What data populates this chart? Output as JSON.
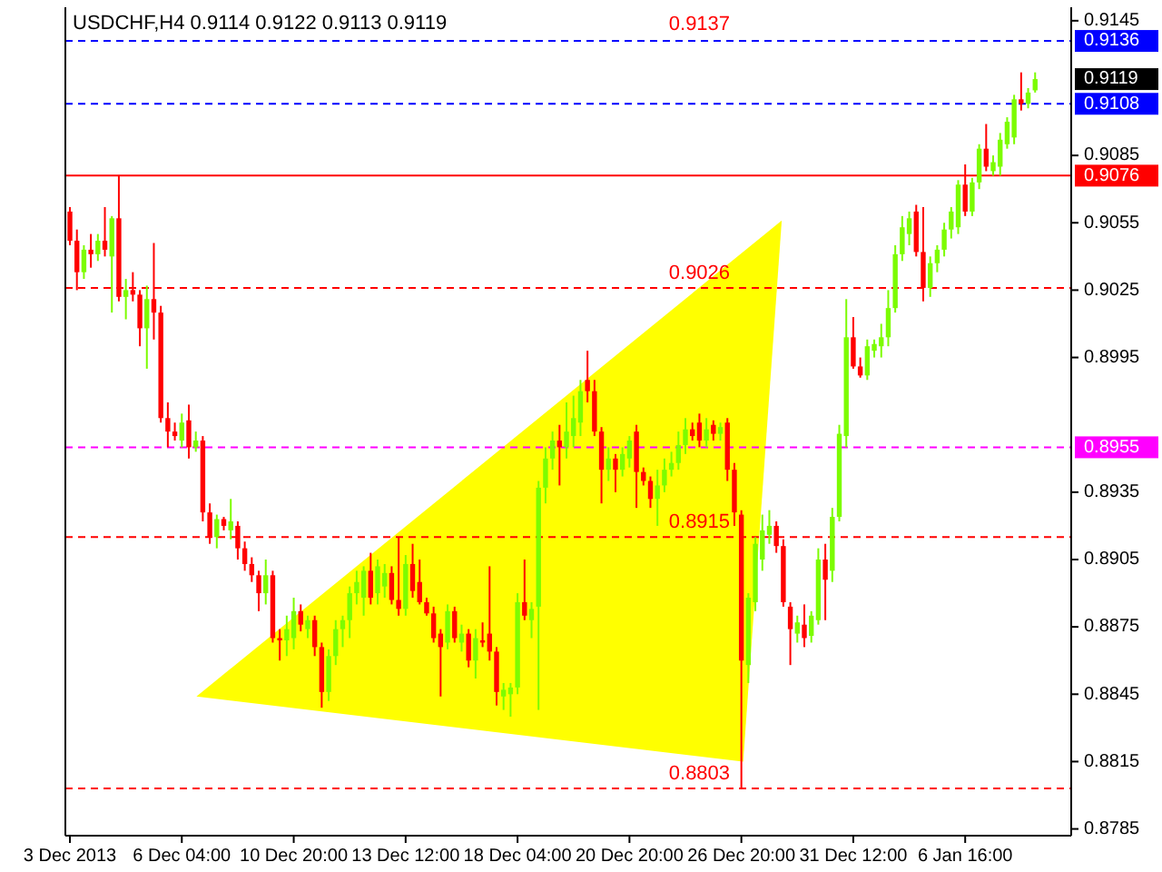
{
  "chart_data": {
    "type": "candlestick",
    "title": "USDCHF,H4  0.9114 0.9122 0.9113 0.9119",
    "categories": [
      "3 Dec 2013",
      null,
      null,
      null,
      null,
      null,
      null,
      null,
      null,
      null,
      null,
      null,
      null,
      null,
      null,
      null,
      "6 Dec 04:00",
      null,
      null,
      null,
      null,
      null,
      null,
      null,
      null,
      null,
      null,
      null,
      null,
      null,
      null,
      null,
      "10 Dec 20:00",
      null,
      null,
      null,
      null,
      null,
      null,
      null,
      null,
      null,
      null,
      null,
      null,
      null,
      null,
      null,
      "13 Dec 12:00",
      null,
      null,
      null,
      null,
      null,
      null,
      null,
      null,
      null,
      null,
      null,
      null,
      null,
      null,
      null,
      "18 Dec 04:00",
      null,
      null,
      null,
      null,
      null,
      null,
      null,
      null,
      null,
      null,
      null,
      null,
      null,
      null,
      null,
      "20 Dec 20:00",
      null,
      null,
      null,
      null,
      null,
      null,
      null,
      null,
      null,
      null,
      null,
      null,
      null,
      null,
      null,
      "26 Dec 20:00",
      null,
      null,
      null,
      null,
      null,
      null,
      null,
      null,
      null,
      null,
      null,
      null,
      null,
      null,
      null,
      "31 Dec 12:00",
      null,
      null,
      null,
      null,
      null,
      null,
      null,
      null,
      null,
      null,
      null,
      null,
      null,
      null,
      null,
      "6 Jan 16:00",
      null,
      null,
      null,
      null,
      null,
      null,
      null,
      null,
      null,
      null
    ],
    "ohlc": [
      [
        0.906,
        0.9062,
        0.9045,
        0.9047
      ],
      [
        0.9047,
        0.9052,
        0.9025,
        0.9033
      ],
      [
        0.9033,
        0.9045,
        0.903,
        0.9043
      ],
      [
        0.9043,
        0.905,
        0.9035,
        0.9041
      ],
      [
        0.9041,
        0.905,
        0.9038,
        0.9047
      ],
      [
        0.9047,
        0.9062,
        0.904,
        0.9043
      ],
      [
        0.904,
        0.9058,
        0.9015,
        0.9057
      ],
      [
        0.9057,
        0.9076,
        0.902,
        0.9022
      ],
      [
        0.9022,
        0.903,
        0.9012,
        0.9025
      ],
      [
        0.9025,
        0.9033,
        0.902,
        0.9023
      ],
      [
        0.9023,
        0.9025,
        0.9,
        0.9008
      ],
      [
        0.9008,
        0.9027,
        0.899,
        0.9021
      ],
      [
        0.9021,
        0.9046,
        0.9003,
        0.9015
      ],
      [
        0.9015,
        0.9018,
        0.8966,
        0.8968
      ],
      [
        0.8968,
        0.8975,
        0.8955,
        0.8962
      ],
      [
        0.8962,
        0.8966,
        0.8958,
        0.896
      ],
      [
        0.8958,
        0.897,
        0.8955,
        0.8966
      ],
      [
        0.8967,
        0.8974,
        0.895,
        0.8955
      ],
      [
        0.8955,
        0.8962,
        0.8953,
        0.8958
      ],
      [
        0.8958,
        0.896,
        0.8922,
        0.8926
      ],
      [
        0.8926,
        0.893,
        0.8912,
        0.8915
      ],
      [
        0.8915,
        0.8925,
        0.891,
        0.8923
      ],
      [
        0.8923,
        0.8924,
        0.8918,
        0.892
      ],
      [
        0.8918,
        0.8932,
        0.8914,
        0.8922
      ],
      [
        0.892,
        0.8922,
        0.8905,
        0.891
      ],
      [
        0.891,
        0.8913,
        0.89,
        0.8903
      ],
      [
        0.8903,
        0.8906,
        0.8895,
        0.8898
      ],
      [
        0.8898,
        0.89,
        0.8882,
        0.889
      ],
      [
        0.889,
        0.8905,
        0.8885,
        0.8898
      ],
      [
        0.8898,
        0.89,
        0.8868,
        0.887
      ],
      [
        0.887,
        0.8874,
        0.886,
        0.8869
      ],
      [
        0.8869,
        0.888,
        0.8862,
        0.8874
      ],
      [
        0.887,
        0.8888,
        0.8865,
        0.8882
      ],
      [
        0.8882,
        0.8885,
        0.8873,
        0.8876
      ],
      [
        0.8874,
        0.888,
        0.887,
        0.8878
      ],
      [
        0.8878,
        0.888,
        0.8862,
        0.8866
      ],
      [
        0.8866,
        0.8868,
        0.8839,
        0.8846
      ],
      [
        0.8846,
        0.8865,
        0.8842,
        0.8862
      ],
      [
        0.8862,
        0.8878,
        0.8858,
        0.8874
      ],
      [
        0.8874,
        0.888,
        0.8866,
        0.8878
      ],
      [
        0.8878,
        0.8893,
        0.887,
        0.889
      ],
      [
        0.889,
        0.89,
        0.8885,
        0.8895
      ],
      [
        0.8888,
        0.8902,
        0.888,
        0.89
      ],
      [
        0.89,
        0.8908,
        0.8885,
        0.8888
      ],
      [
        0.889,
        0.8905,
        0.8885,
        0.8902
      ],
      [
        0.8893,
        0.8903,
        0.8888,
        0.8899
      ],
      [
        0.8899,
        0.8902,
        0.8885,
        0.8887
      ],
      [
        0.8887,
        0.8915,
        0.888,
        0.8883
      ],
      [
        0.8883,
        0.8907,
        0.888,
        0.8903
      ],
      [
        0.8903,
        0.8912,
        0.8888,
        0.8891
      ],
      [
        0.8895,
        0.8905,
        0.8885,
        0.8886
      ],
      [
        0.8886,
        0.8888,
        0.888,
        0.8881
      ],
      [
        0.8881,
        0.8884,
        0.8868,
        0.887
      ],
      [
        0.8872,
        0.8874,
        0.8844,
        0.8866
      ],
      [
        0.8868,
        0.8885,
        0.8865,
        0.8882
      ],
      [
        0.8882,
        0.8884,
        0.8868,
        0.887
      ],
      [
        0.8868,
        0.8876,
        0.8864,
        0.8872
      ],
      [
        0.8872,
        0.8874,
        0.8857,
        0.886
      ],
      [
        0.886,
        0.8874,
        0.8852,
        0.887
      ],
      [
        0.8869,
        0.8877,
        0.8866,
        0.8868
      ],
      [
        0.8872,
        0.8902,
        0.886,
        0.8864
      ],
      [
        0.8864,
        0.8866,
        0.884,
        0.8846
      ],
      [
        0.8844,
        0.885,
        0.8838,
        0.8847
      ],
      [
        0.8845,
        0.885,
        0.8835,
        0.8848
      ],
      [
        0.8848,
        0.889,
        0.8845,
        0.8886
      ],
      [
        0.8886,
        0.8905,
        0.8878,
        0.888
      ],
      [
        0.8878,
        0.8886,
        0.887,
        0.8883
      ],
      [
        0.8884,
        0.894,
        0.8838,
        0.8937
      ],
      [
        0.8937,
        0.8955,
        0.893,
        0.895
      ],
      [
        0.895,
        0.8962,
        0.8945,
        0.8958
      ],
      [
        0.8958,
        0.8965,
        0.8938,
        0.8955
      ],
      [
        0.8955,
        0.8975,
        0.895,
        0.8962
      ],
      [
        0.896,
        0.8978,
        0.8955,
        0.8968
      ],
      [
        0.8966,
        0.8985,
        0.896,
        0.898
      ],
      [
        0.8985,
        0.8998,
        0.8975,
        0.898
      ],
      [
        0.898,
        0.8985,
        0.896,
        0.8962
      ],
      [
        0.8962,
        0.8964,
        0.893,
        0.8945
      ],
      [
        0.8945,
        0.8955,
        0.894,
        0.895
      ],
      [
        0.895,
        0.8952,
        0.8935,
        0.8945
      ],
      [
        0.8945,
        0.8955,
        0.8942,
        0.8952
      ],
      [
        0.895,
        0.896,
        0.8946,
        0.8958
      ],
      [
        0.8962,
        0.8965,
        0.8928,
        0.8944
      ],
      [
        0.8944,
        0.8946,
        0.8938,
        0.894
      ],
      [
        0.894,
        0.8942,
        0.8928,
        0.8932
      ],
      [
        0.8932,
        0.8945,
        0.892,
        0.8938
      ],
      [
        0.8938,
        0.895,
        0.8935,
        0.8945
      ],
      [
        0.8945,
        0.8953,
        0.8942,
        0.8948
      ],
      [
        0.8948,
        0.8962,
        0.8945,
        0.8956
      ],
      [
        0.8956,
        0.8968,
        0.8952,
        0.8963
      ],
      [
        0.8963,
        0.8966,
        0.8958,
        0.896
      ],
      [
        0.8966,
        0.897,
        0.8955,
        0.8958
      ],
      [
        0.8958,
        0.8968,
        0.8955,
        0.8963
      ],
      [
        0.8965,
        0.8967,
        0.8958,
        0.8961
      ],
      [
        0.8961,
        0.8966,
        0.8958,
        0.8964
      ],
      [
        0.8966,
        0.8968,
        0.894,
        0.8945
      ],
      [
        0.8945,
        0.8948,
        0.892,
        0.8926
      ],
      [
        0.8925,
        0.8927,
        0.8803,
        0.886
      ],
      [
        0.8858,
        0.889,
        0.885,
        0.8888
      ],
      [
        0.8886,
        0.8915,
        0.8882,
        0.8912
      ],
      [
        0.8905,
        0.8925,
        0.89,
        0.8918
      ],
      [
        0.8916,
        0.8927,
        0.8912,
        0.892
      ],
      [
        0.892,
        0.8922,
        0.8908,
        0.8911
      ],
      [
        0.8911,
        0.8914,
        0.8884,
        0.8886
      ],
      [
        0.8884,
        0.8886,
        0.8858,
        0.8874
      ],
      [
        0.8872,
        0.888,
        0.8868,
        0.8877
      ],
      [
        0.8876,
        0.8885,
        0.8866,
        0.887
      ],
      [
        0.8871,
        0.8882,
        0.8868,
        0.888
      ],
      [
        0.8878,
        0.891,
        0.8876,
        0.8905
      ],
      [
        0.8905,
        0.8912,
        0.8878,
        0.8896
      ],
      [
        0.89,
        0.8928,
        0.8895,
        0.8924
      ],
      [
        0.8924,
        0.8965,
        0.8922,
        0.8961
      ],
      [
        0.896,
        0.9021,
        0.8955,
        0.9004
      ],
      [
        0.9004,
        0.9013,
        0.899,
        0.8991
      ],
      [
        0.8991,
        0.8995,
        0.8986,
        0.8987
      ],
      [
        0.8987,
        0.9003,
        0.8985,
        0.9
      ],
      [
        0.8998,
        0.9003,
        0.8995,
        0.9001
      ],
      [
        0.9,
        0.901,
        0.8995,
        0.9004
      ],
      [
        0.9004,
        0.9025,
        0.9,
        0.9017
      ],
      [
        0.9017,
        0.9045,
        0.9015,
        0.9041
      ],
      [
        0.9041,
        0.9058,
        0.9038,
        0.9053
      ],
      [
        0.905,
        0.906,
        0.9045,
        0.9057
      ],
      [
        0.906,
        0.9063,
        0.904,
        0.9042
      ],
      [
        0.9042,
        0.9062,
        0.902,
        0.9026
      ],
      [
        0.9026,
        0.904,
        0.9022,
        0.9037
      ],
      [
        0.9037,
        0.9045,
        0.9033,
        0.9043
      ],
      [
        0.9043,
        0.9055,
        0.904,
        0.9052
      ],
      [
        0.9052,
        0.9062,
        0.9048,
        0.906
      ],
      [
        0.9053,
        0.9074,
        0.905,
        0.9072
      ],
      [
        0.9072,
        0.9081,
        0.9058,
        0.906
      ],
      [
        0.906,
        0.9075,
        0.9058,
        0.9073
      ],
      [
        0.9073,
        0.909,
        0.907,
        0.9088
      ],
      [
        0.9088,
        0.9099,
        0.9078,
        0.908
      ],
      [
        0.9078,
        0.9085,
        0.9076,
        0.9082
      ],
      [
        0.908,
        0.9095,
        0.9076,
        0.9092
      ],
      [
        0.909,
        0.9102,
        0.9088,
        0.91
      ],
      [
        0.9093,
        0.9112,
        0.909,
        0.911
      ],
      [
        0.911,
        0.9122,
        0.9105,
        0.9108
      ],
      [
        0.9108,
        0.9115,
        0.9106,
        0.9113
      ],
      [
        0.9114,
        0.9122,
        0.9113,
        0.9119
      ]
    ],
    "ylim": [
      0.8782,
      0.9151
    ],
    "yticks": [
      0.9145,
      0.9085,
      0.9055,
      0.9025,
      0.8995,
      0.8935,
      0.8905,
      0.8875,
      0.8845,
      0.8815,
      0.8785
    ],
    "ref_lines": [
      {
        "axis": "y",
        "value": 0.9136,
        "label": "0.9136",
        "color": "#0000ff",
        "line_style": "dashed"
      },
      {
        "axis": "y",
        "value": 0.9108,
        "label": "0.9108",
        "color": "#0000ff",
        "line_style": "dashed"
      },
      {
        "axis": "y",
        "value": 0.9076,
        "label": "0.9076",
        "color": "#ff0000",
        "line_style": "solid"
      },
      {
        "axis": "y",
        "value": 0.8955,
        "label": "0.8955",
        "color": "#ff00ff",
        "line_style": "dashed"
      },
      {
        "axis": "y",
        "value": 0.9026,
        "color": "#ff0000",
        "line_style": "dashed"
      },
      {
        "axis": "y",
        "value": 0.8915,
        "color": "#ff0000",
        "line_style": "dashed"
      },
      {
        "axis": "y",
        "value": 0.8803,
        "color": "#ff0000",
        "line_style": "dashed"
      }
    ],
    "annotations": [
      "0.9119",
      {
        "text": "0.9137",
        "y": 0.9137
      },
      {
        "text": "0.9026",
        "y": 0.9026
      },
      {
        "text": "0.8915",
        "y": 0.8915
      },
      {
        "text": "0.8803",
        "y": 0.8803
      }
    ]
  }
}
